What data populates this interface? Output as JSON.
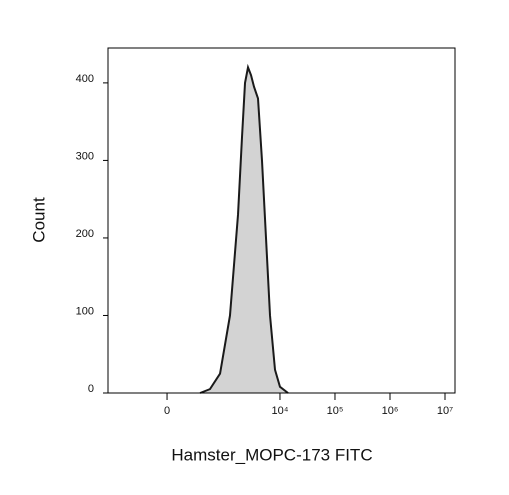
{
  "chart_data": {
    "type": "area",
    "xlabel": "Hamster_MOPC-173 FITC",
    "ylabel": "Count",
    "xscale": "biexponential",
    "x": [
      331,
      519,
      804,
      1228,
      1722,
      2037,
      2312,
      2621,
      2974,
      3370,
      3984,
      4710,
      5570,
      6590,
      8120,
      10000,
      14000
    ],
    "values": [
      0,
      5,
      25,
      100,
      230,
      330,
      400,
      420,
      410,
      395,
      380,
      300,
      200,
      100,
      30,
      8,
      0
    ],
    "color": "#d3d3d3",
    "line_color": "#1a1a1a",
    "xlim": [
      -1040,
      15200000
    ],
    "xticks": [
      0,
      {
        "value": 10000,
        "label": "10⁴"
      },
      {
        "value": 100000,
        "label": "10⁵"
      },
      {
        "value": 1000000,
        "label": "10⁶"
      },
      {
        "value": 10000000,
        "label": "10⁷"
      }
    ],
    "ylim": [
      0,
      445
    ],
    "yticks": [
      0,
      100,
      200,
      300,
      400
    ]
  }
}
